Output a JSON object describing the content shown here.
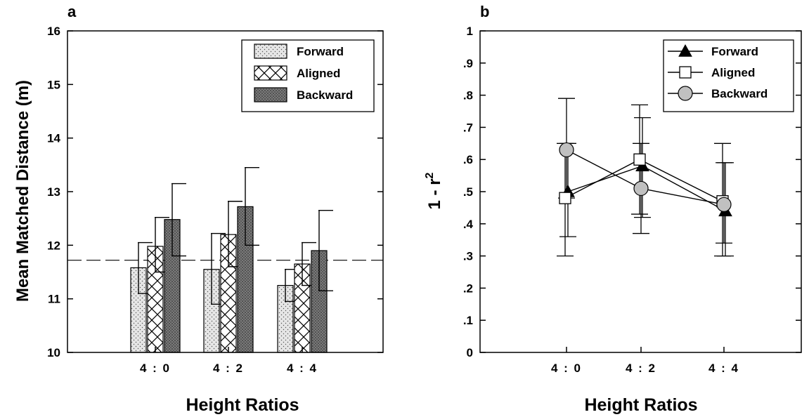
{
  "chart_data": [
    {
      "panel": "a",
      "type": "bar",
      "xlabel": "Height Ratios",
      "ylabel": "Mean Matched Distance (m)",
      "ylim": [
        10,
        16
      ],
      "yticks": [
        "10",
        "11",
        "12",
        "13",
        "14",
        "15",
        "16"
      ],
      "categories": [
        "4 : 0",
        "4 : 2",
        "4 : 4"
      ],
      "reference_line": 11.72,
      "legend_position": "top-right",
      "series": [
        {
          "name": "Forward",
          "pattern": "dots-diagonal",
          "values": [
            11.58,
            11.55,
            11.25
          ],
          "error_upper": [
            12.05,
            12.22,
            11.55
          ],
          "error_lower": [
            11.1,
            10.9,
            10.95
          ]
        },
        {
          "name": "Aligned",
          "pattern": "crosshatch",
          "values": [
            11.98,
            12.2,
            11.65
          ],
          "error_upper": [
            12.52,
            12.82,
            12.05
          ],
          "error_lower": [
            11.5,
            11.6,
            11.25
          ]
        },
        {
          "name": "Backward",
          "pattern": "dense-dots",
          "values": [
            12.48,
            12.72,
            11.9
          ],
          "error_upper": [
            13.15,
            13.45,
            12.65
          ],
          "error_lower": [
            11.8,
            12.0,
            11.15
          ]
        }
      ]
    },
    {
      "panel": "b",
      "type": "line",
      "xlabel": "Height Ratios",
      "ylabel_main": "1 - r",
      "ylabel_superscript": "2",
      "ylim": [
        0,
        1
      ],
      "yticks": [
        "0",
        ".1",
        ".2",
        ".3",
        ".4",
        ".5",
        ".6",
        ".7",
        ".8",
        ".9",
        "1"
      ],
      "categories": [
        "4 : 0",
        "4 : 2",
        "4 : 4"
      ],
      "legend_position": "top-right",
      "series": [
        {
          "name": "Forward",
          "marker": "filled-triangle",
          "color": "#000000",
          "values": [
            0.5,
            0.58,
            0.44
          ],
          "error_upper": [
            0.65,
            0.73,
            0.59
          ],
          "error_lower": [
            0.36,
            0.42,
            0.3
          ]
        },
        {
          "name": "Aligned",
          "marker": "open-square",
          "color": "#ffffff",
          "values": [
            0.48,
            0.6,
            0.47
          ],
          "error_upper": [
            0.65,
            0.77,
            0.65
          ],
          "error_lower": [
            0.3,
            0.43,
            0.3
          ]
        },
        {
          "name": "Backward",
          "marker": "gray-circle",
          "color": "#c0c0c0",
          "values": [
            0.63,
            0.51,
            0.46
          ],
          "error_upper": [
            0.79,
            0.65,
            0.59
          ],
          "error_lower": [
            0.48,
            0.37,
            0.34
          ]
        }
      ]
    }
  ]
}
